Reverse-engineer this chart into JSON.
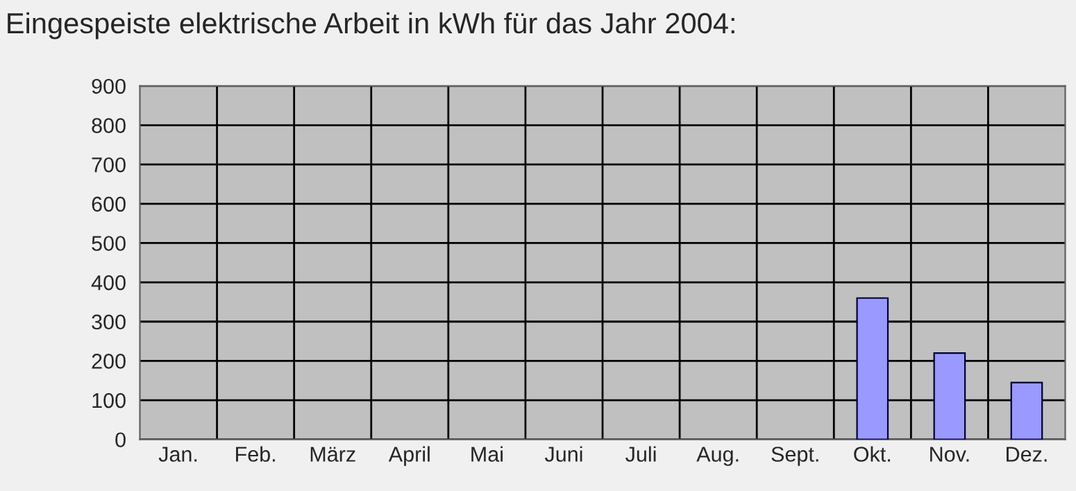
{
  "chart_data": {
    "type": "bar",
    "title": "Eingespeiste elektrische Arbeit in kWh für das Jahr 2004:",
    "categories": [
      "Jan.",
      "Feb.",
      "März",
      "April",
      "Mai",
      "Juni",
      "Juli",
      "Aug.",
      "Sept.",
      "Okt.",
      "Nov.",
      "Dez."
    ],
    "values": [
      0,
      0,
      0,
      0,
      0,
      0,
      0,
      0,
      0,
      360,
      220,
      145
    ],
    "color": "#9999ff",
    "ylim": [
      0,
      900
    ],
    "yticks": [
      0,
      100,
      200,
      300,
      400,
      500,
      600,
      700,
      800,
      900
    ],
    "grid": true,
    "legend": false
  }
}
